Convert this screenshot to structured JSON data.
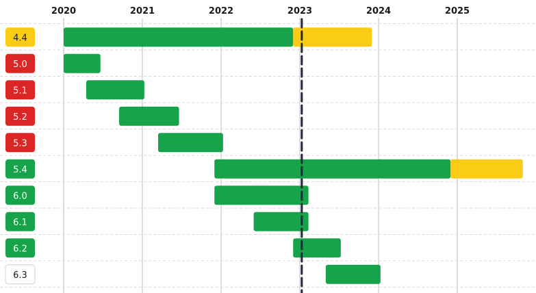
{
  "chart_data": {
    "type": "gantt",
    "x_ticks": [
      "2020",
      "2021",
      "2022",
      "2023",
      "2024",
      "2025"
    ],
    "xlim": [
      "2020-01-01",
      "2025-11-01"
    ],
    "today_marker": "2023-01-10",
    "grid": true,
    "colors": {
      "active": "#16a34a",
      "extended": "#facc15",
      "eol": "#dc2626",
      "future": "#ffffff",
      "today_line": "#1e293b"
    },
    "rows": [
      {
        "version": "4.4",
        "status": "extended",
        "active": [
          "2020-01-01",
          "2022-12-01"
        ],
        "extended": [
          "2022-12-01",
          "2023-12-01"
        ]
      },
      {
        "version": "5.0",
        "status": "eol",
        "active": [
          "2020-01-01",
          "2020-06-20"
        ]
      },
      {
        "version": "5.1",
        "status": "eol",
        "active": [
          "2020-04-15",
          "2021-01-10"
        ]
      },
      {
        "version": "5.2",
        "status": "eol",
        "active": [
          "2020-09-15",
          "2021-06-20"
        ]
      },
      {
        "version": "5.3",
        "status": "eol",
        "active": [
          "2021-03-15",
          "2022-01-10"
        ]
      },
      {
        "version": "5.4",
        "status": "active",
        "active": [
          "2021-12-01",
          "2024-12-01"
        ],
        "extended": [
          "2024-12-01",
          "2025-11-01"
        ]
      },
      {
        "version": "6.0",
        "status": "active",
        "active": [
          "2021-12-01",
          "2023-02-10"
        ]
      },
      {
        "version": "6.1",
        "status": "active",
        "active": [
          "2022-06-01",
          "2023-02-10"
        ]
      },
      {
        "version": "6.2",
        "status": "active",
        "active": [
          "2022-12-01",
          "2023-07-10"
        ]
      },
      {
        "version": "6.3",
        "status": "future",
        "active": [
          "2023-05-01",
          "2024-01-10"
        ]
      }
    ]
  }
}
